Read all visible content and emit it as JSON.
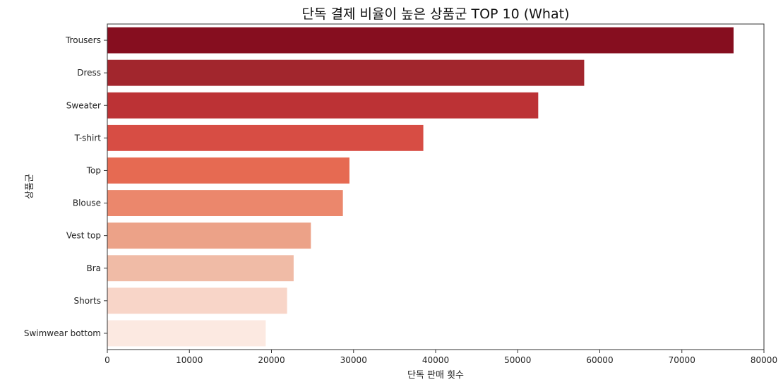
{
  "chart_data": {
    "type": "bar",
    "orientation": "horizontal",
    "title": "단독 결제 비율이 높은 상품군 TOP 10 (What)",
    "xlabel": "단독 판매 횟수",
    "ylabel": "상품군",
    "categories": [
      "Trousers",
      "Dress",
      "Sweater",
      "T-shirt",
      "Top",
      "Blouse",
      "Vest top",
      "Bra",
      "Shorts",
      "Swimwear bottom"
    ],
    "values": [
      76300,
      58100,
      52500,
      38500,
      29500,
      28700,
      24800,
      22700,
      21900,
      19300
    ],
    "colors": [
      "#860e1f",
      "#a2262d",
      "#bc3235",
      "#d74d44",
      "#e66a52",
      "#eb876c",
      "#eca288",
      "#f0bba6",
      "#f8d5c8",
      "#fce9e1"
    ],
    "xlim": [
      0,
      80000
    ],
    "xticks": [
      0,
      10000,
      20000,
      30000,
      40000,
      50000,
      60000,
      70000,
      80000
    ],
    "xtick_labels": [
      "0",
      "10000",
      "20000",
      "30000",
      "40000",
      "50000",
      "60000",
      "70000",
      "80000"
    ],
    "grid": false,
    "legend": "none"
  }
}
